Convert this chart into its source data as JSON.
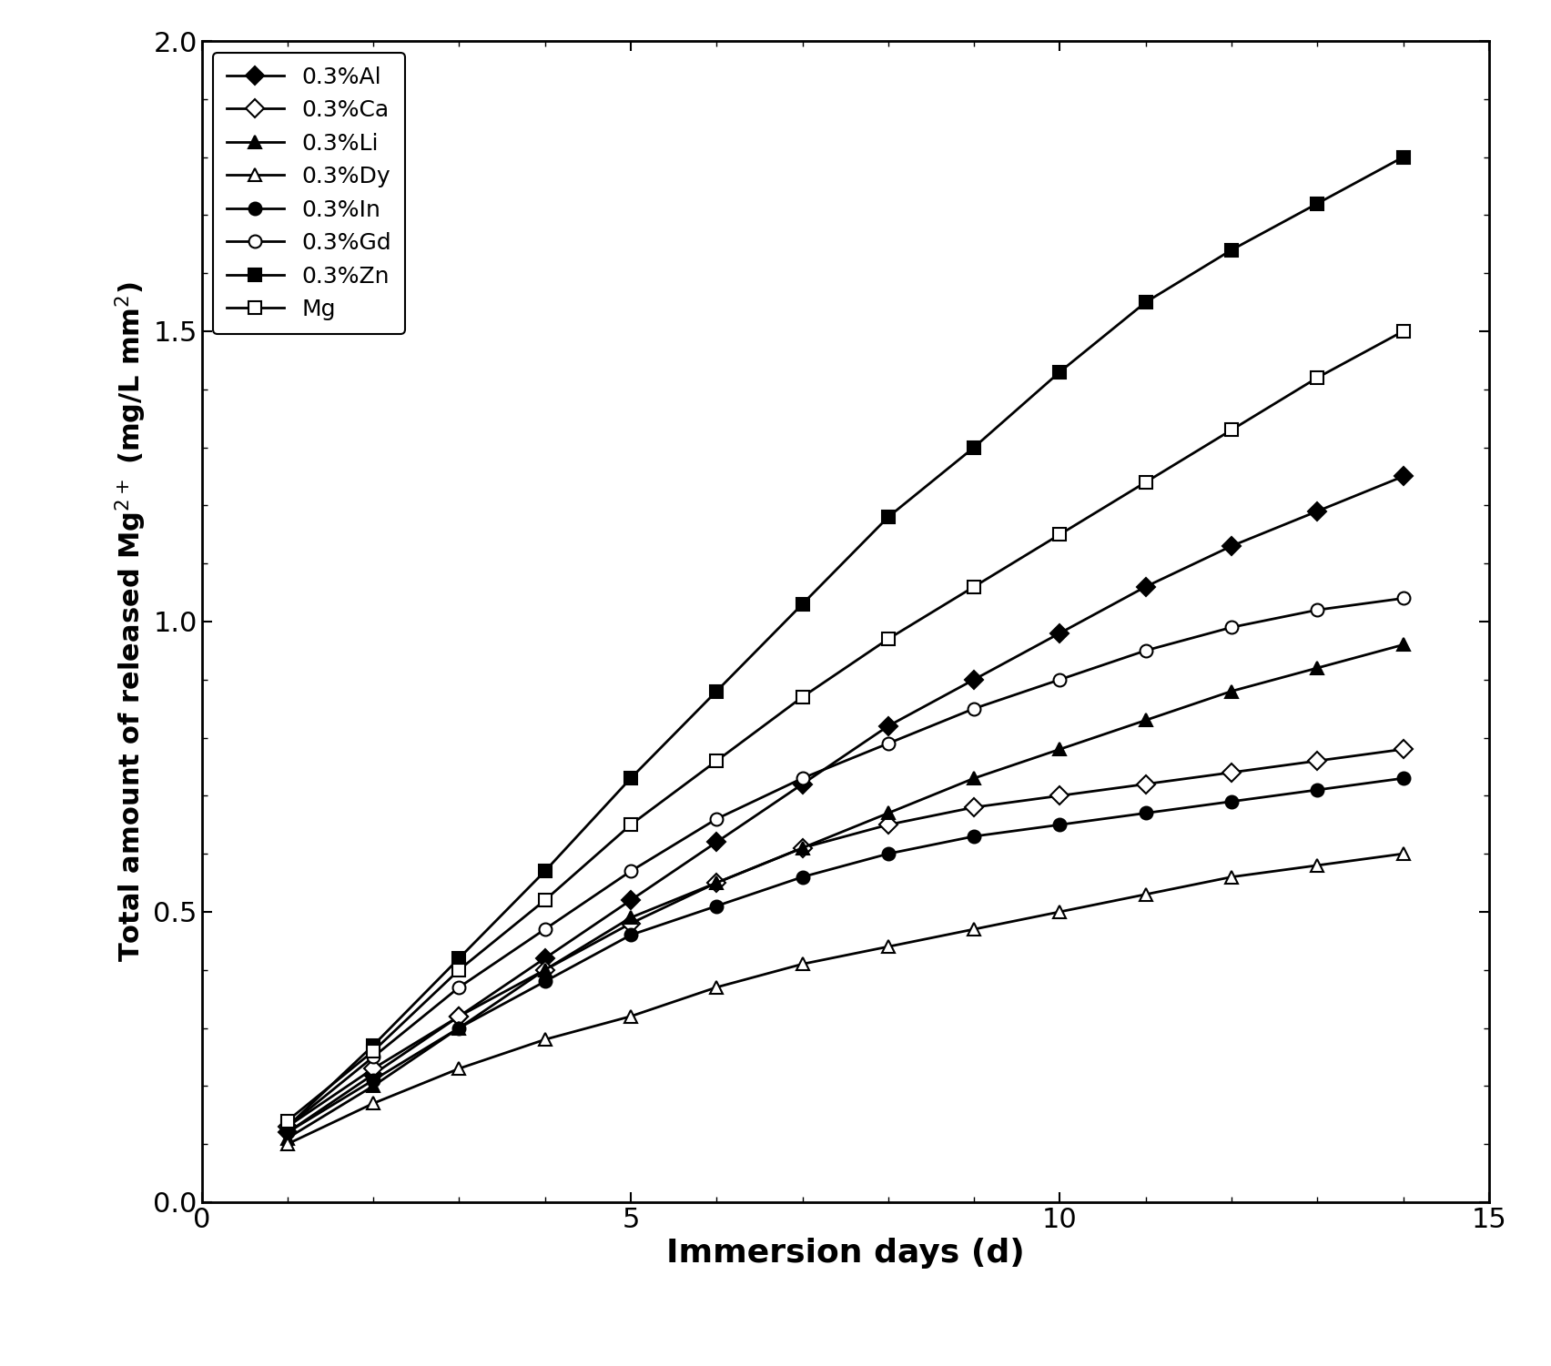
{
  "x": [
    1,
    2,
    3,
    4,
    5,
    6,
    7,
    8,
    9,
    10,
    11,
    12,
    13,
    14
  ],
  "series": {
    "0.3%Al": [
      0.12,
      0.22,
      0.32,
      0.42,
      0.52,
      0.62,
      0.72,
      0.82,
      0.9,
      0.98,
      1.06,
      1.13,
      1.19,
      1.25
    ],
    "0.3%Ca": [
      0.13,
      0.23,
      0.32,
      0.4,
      0.48,
      0.55,
      0.61,
      0.65,
      0.68,
      0.7,
      0.72,
      0.74,
      0.76,
      0.78
    ],
    "0.3%Li": [
      0.11,
      0.2,
      0.3,
      0.4,
      0.49,
      0.55,
      0.61,
      0.67,
      0.73,
      0.78,
      0.83,
      0.88,
      0.92,
      0.96
    ],
    "0.3%Dy": [
      0.1,
      0.17,
      0.23,
      0.28,
      0.32,
      0.37,
      0.41,
      0.44,
      0.47,
      0.5,
      0.53,
      0.56,
      0.58,
      0.6
    ],
    "0.3%In": [
      0.12,
      0.21,
      0.3,
      0.38,
      0.46,
      0.51,
      0.56,
      0.6,
      0.63,
      0.65,
      0.67,
      0.69,
      0.71,
      0.73
    ],
    "0.3%Gd": [
      0.13,
      0.25,
      0.37,
      0.47,
      0.57,
      0.66,
      0.73,
      0.79,
      0.85,
      0.9,
      0.95,
      0.99,
      1.02,
      1.04
    ],
    "0.3%Zn": [
      0.13,
      0.27,
      0.42,
      0.57,
      0.73,
      0.88,
      1.03,
      1.18,
      1.3,
      1.43,
      1.55,
      1.64,
      1.72,
      1.8
    ],
    "Mg": [
      0.14,
      0.26,
      0.4,
      0.52,
      0.65,
      0.76,
      0.87,
      0.97,
      1.06,
      1.15,
      1.24,
      1.33,
      1.42,
      1.5
    ]
  },
  "markers": {
    "0.3%Al": {
      "marker": "D",
      "filled": true
    },
    "0.3%Ca": {
      "marker": "D",
      "filled": false
    },
    "0.3%Li": {
      "marker": "^",
      "filled": true
    },
    "0.3%Dy": {
      "marker": "^",
      "filled": false
    },
    "0.3%In": {
      "marker": "o",
      "filled": true
    },
    "0.3%Gd": {
      "marker": "o",
      "filled": false
    },
    "0.3%Zn": {
      "marker": "s",
      "filled": true
    },
    "Mg": {
      "marker": "s",
      "filled": false
    }
  },
  "xlim": [
    0,
    15
  ],
  "ylim": [
    0,
    2.0
  ],
  "xticks": [
    0,
    5,
    10,
    15
  ],
  "yticks": [
    0,
    0.5,
    1.0,
    1.5,
    2.0
  ],
  "xlabel": "Immersion days (d)",
  "ylabel": "Total amount of released Mg$^{2+}$ (mg/L mm$^{2}$)",
  "legend_order": [
    "0.3%Al",
    "0.3%Ca",
    "0.3%Li",
    "0.3%Dy",
    "0.3%In",
    "0.3%Gd",
    "0.3%Zn",
    "Mg"
  ],
  "linewidth": 2.0,
  "markersize": 10,
  "background_color": "#ffffff",
  "xlabel_fontsize": 26,
  "ylabel_fontsize": 22,
  "tick_labelsize": 22,
  "legend_fontsize": 18
}
